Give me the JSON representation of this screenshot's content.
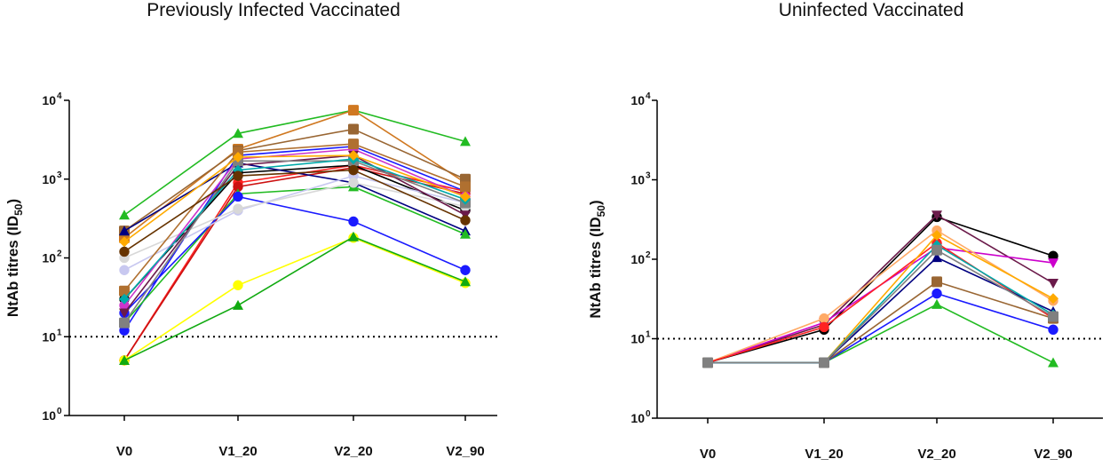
{
  "chart_data": [
    {
      "type": "line",
      "title": "Previously Infected Vaccinated",
      "ylabel": "NtAb titres (ID",
      "ylabel_sub": "50",
      "ylabel_close": ")",
      "yscale": "log",
      "ylim": [
        1,
        10000
      ],
      "yticks": [
        {
          "base": "10",
          "exp": "0",
          "value": 1
        },
        {
          "base": "10",
          "exp": "1",
          "value": 10
        },
        {
          "base": "10",
          "exp": "2",
          "value": 100
        },
        {
          "base": "10",
          "exp": "3",
          "value": 1000
        },
        {
          "base": "10",
          "exp": "4",
          "value": 10000
        }
      ],
      "threshold": 10,
      "categories": [
        "V0",
        "V1_20",
        "V2_20",
        "V2_90"
      ],
      "series": [
        {
          "color": "#22bb22",
          "marker": "triangle",
          "values": [
            350,
            3800,
            7500,
            3000
          ]
        },
        {
          "color": "#d07820",
          "marker": "square",
          "values": [
            180,
            2400,
            7500,
            900
          ]
        },
        {
          "color": "#996633",
          "marker": "square",
          "values": [
            220,
            2300,
            4300,
            1000
          ]
        },
        {
          "color": "#1a1aff",
          "marker": "circle",
          "values": [
            12,
            2000,
            2600,
            700
          ]
        },
        {
          "color": "#ff2222",
          "marker": "circle",
          "values": [
            5,
            900,
            1500,
            700
          ]
        },
        {
          "color": "#cc1111",
          "marker": "circle",
          "values": [
            5,
            800,
            1400,
            650
          ]
        },
        {
          "color": "#000000",
          "marker": "circle",
          "values": [
            30,
            1200,
            1500,
            400
          ]
        },
        {
          "color": "#000080",
          "marker": "triangle",
          "values": [
            220,
            1600,
            900,
            220
          ]
        },
        {
          "color": "#22bb22",
          "marker": "triangle",
          "values": [
            15,
            650,
            800,
            200
          ]
        },
        {
          "color": "#1a1aff",
          "marker": "circle",
          "values": [
            20,
            600,
            290,
            70
          ]
        },
        {
          "color": "#ffff00",
          "marker": "circle",
          "values": [
            5,
            45,
            180,
            48
          ]
        },
        {
          "color": "#11aa11",
          "marker": "triangle",
          "values": [
            5,
            25,
            185,
            50
          ]
        },
        {
          "color": "#c8c8f0",
          "marker": "circle",
          "values": [
            70,
            400,
            1100,
            500
          ]
        },
        {
          "color": "#d8d8d8",
          "marker": "circle",
          "values": [
            100,
            420,
            900,
            450
          ]
        },
        {
          "color": "#cc33cc",
          "marker": "circle",
          "values": [
            25,
            1800,
            2400,
            600
          ]
        },
        {
          "color": "#6b1a4a",
          "marker": "triangle-down",
          "values": [
            20,
            1500,
            2000,
            350
          ]
        },
        {
          "color": "#808080",
          "marker": "square",
          "values": [
            15,
            1700,
            1700,
            500
          ]
        },
        {
          "color": "#b07030",
          "marker": "square",
          "values": [
            38,
            2200,
            2800,
            800
          ]
        },
        {
          "color": "#00aaaa",
          "marker": "diamond",
          "values": [
            30,
            1300,
            1800,
            550
          ]
        },
        {
          "color": "#ffaa00",
          "marker": "diamond",
          "values": [
            160,
            1900,
            2000,
            600
          ]
        },
        {
          "color": "#663300",
          "marker": "circle",
          "values": [
            120,
            1100,
            1300,
            300
          ]
        }
      ]
    },
    {
      "type": "line",
      "title": "Uninfected Vaccinated",
      "ylabel": "NtAb titres (ID",
      "ylabel_sub": "50",
      "ylabel_close": ")",
      "yscale": "log",
      "ylim": [
        1,
        10000
      ],
      "yticks": [
        {
          "base": "10",
          "exp": "0",
          "value": 1
        },
        {
          "base": "10",
          "exp": "1",
          "value": 10
        },
        {
          "base": "10",
          "exp": "2",
          "value": 100
        },
        {
          "base": "10",
          "exp": "3",
          "value": 1000
        },
        {
          "base": "10",
          "exp": "4",
          "value": 10000
        }
      ],
      "threshold": 10,
      "categories": [
        "V0",
        "V1_20",
        "V2_20",
        "V2_90"
      ],
      "series": [
        {
          "color": "#000000",
          "marker": "circle",
          "values": [
            5,
            13,
            340,
            110
          ]
        },
        {
          "color": "#6b1a4a",
          "marker": "triangle-down",
          "values": [
            5,
            15,
            360,
            50
          ]
        },
        {
          "color": "#cc00cc",
          "marker": "triangle-down",
          "values": [
            5,
            16,
            140,
            90
          ]
        },
        {
          "color": "#ffaa66",
          "marker": "circle",
          "values": [
            5,
            18,
            230,
            30
          ]
        },
        {
          "color": "#ff2222",
          "marker": "circle",
          "values": [
            5,
            14,
            160,
            18
          ]
        },
        {
          "color": "#ffaa00",
          "marker": "diamond",
          "values": [
            5,
            5,
            200,
            32
          ]
        },
        {
          "color": "#22bb22",
          "marker": "triangle",
          "values": [
            5,
            5,
            27,
            5
          ]
        },
        {
          "color": "#1a1aff",
          "marker": "circle",
          "values": [
            5,
            5,
            37,
            13
          ]
        },
        {
          "color": "#996633",
          "marker": "square",
          "values": [
            5,
            5,
            52,
            18
          ]
        },
        {
          "color": "#000080",
          "marker": "triangle",
          "values": [
            5,
            5,
            105,
            22
          ]
        },
        {
          "color": "#00aaaa",
          "marker": "diamond",
          "values": [
            5,
            5,
            150,
            20
          ]
        },
        {
          "color": "#808080",
          "marker": "square",
          "values": [
            5,
            5,
            130,
            19
          ]
        }
      ]
    }
  ]
}
